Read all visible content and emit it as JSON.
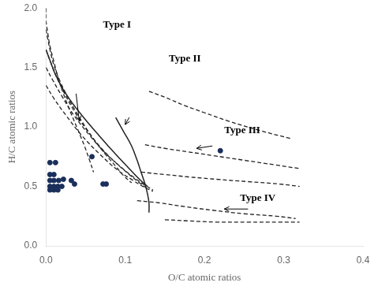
{
  "chart_data": {
    "type": "scatter",
    "xlabel": "O/C atomic ratios",
    "ylabel": "H/C atomic ratios",
    "xlim": [
      0,
      0.4
    ],
    "ylim": [
      0.0,
      2.0
    ],
    "xticks": [
      {
        "value": 0.0,
        "label": "0.0"
      },
      0.1,
      0.2,
      0.3,
      0.4
    ],
    "yticks": [
      {
        "value": 0.0,
        "label": "0.0"
      },
      0.5,
      {
        "value": 1.0,
        "label": "1.0"
      },
      1.5,
      {
        "value": 2.0,
        "label": "2.0"
      }
    ],
    "grid": false,
    "series": [
      {
        "type": "line",
        "line_style": "dashed",
        "color": "#222222",
        "x": [
          0.0,
          0.0,
          0.002,
          0.005,
          0.01,
          0.015,
          0.022,
          0.03,
          0.04,
          0.048,
          0.055,
          0.06
        ],
        "values": [
          2.0,
          1.9,
          1.8,
          1.68,
          1.55,
          1.42,
          1.28,
          1.14,
          0.98,
          0.85,
          0.72,
          0.62
        ]
      },
      {
        "type": "line",
        "line_style": "dashed",
        "color": "#222222",
        "x": [
          0.0,
          0.002,
          0.005,
          0.01,
          0.018,
          0.03,
          0.045,
          0.06,
          0.075,
          0.088,
          0.098,
          0.108
        ],
        "values": [
          1.82,
          1.75,
          1.65,
          1.52,
          1.38,
          1.22,
          1.05,
          0.9,
          0.77,
          0.67,
          0.59,
          0.53
        ]
      },
      {
        "type": "line",
        "line_style": "dashed",
        "color": "#222222",
        "x": [
          0.0,
          0.005,
          0.012,
          0.022,
          0.035,
          0.052,
          0.07,
          0.088,
          0.105,
          0.118,
          0.128
        ],
        "values": [
          1.65,
          1.56,
          1.44,
          1.3,
          1.14,
          0.97,
          0.82,
          0.7,
          0.6,
          0.53,
          0.48
        ]
      },
      {
        "type": "line",
        "line_style": "dashed",
        "color": "#222222",
        "x": [
          0.0,
          0.008,
          0.02,
          0.035,
          0.055,
          0.075,
          0.095,
          0.112,
          0.125,
          0.135
        ],
        "values": [
          1.5,
          1.4,
          1.26,
          1.1,
          0.93,
          0.78,
          0.66,
          0.57,
          0.51,
          0.47
        ]
      },
      {
        "type": "line",
        "line_style": "dashed",
        "color": "#222222",
        "x": [
          0.0,
          0.01,
          0.025,
          0.045,
          0.068,
          0.09,
          0.11,
          0.125,
          0.135
        ],
        "values": [
          1.35,
          1.24,
          1.1,
          0.93,
          0.77,
          0.64,
          0.55,
          0.49,
          0.46
        ]
      },
      {
        "type": "line",
        "line_style": "dashed",
        "color": "#222222",
        "x": [
          0.13,
          0.15,
          0.175,
          0.2,
          0.23,
          0.27,
          0.31
        ],
        "values": [
          1.3,
          1.25,
          1.18,
          1.12,
          1.05,
          0.97,
          0.9
        ]
      },
      {
        "type": "line",
        "line_style": "dashed",
        "color": "#222222",
        "x": [
          0.125,
          0.15,
          0.18,
          0.21,
          0.25,
          0.29,
          0.32
        ],
        "values": [
          0.85,
          0.82,
          0.79,
          0.76,
          0.72,
          0.68,
          0.65
        ]
      },
      {
        "type": "line",
        "line_style": "dashed",
        "color": "#222222",
        "x": [
          0.12,
          0.15,
          0.18,
          0.215,
          0.255,
          0.295,
          0.32
        ],
        "values": [
          0.62,
          0.6,
          0.58,
          0.56,
          0.54,
          0.52,
          0.5
        ]
      },
      {
        "type": "line",
        "line_style": "dashed",
        "color": "#222222",
        "x": [
          0.115,
          0.145,
          0.175,
          0.21,
          0.25,
          0.29,
          0.315
        ],
        "values": [
          0.38,
          0.36,
          0.33,
          0.3,
          0.27,
          0.25,
          0.23
        ]
      },
      {
        "type": "line",
        "line_style": "dashed",
        "color": "#222222",
        "x": [
          0.15,
          0.18,
          0.215,
          0.255,
          0.295,
          0.32
        ],
        "values": [
          0.22,
          0.21,
          0.2,
          0.2,
          0.2,
          0.2
        ]
      },
      {
        "type": "line",
        "line_style": "solid",
        "color": "#222222",
        "x": [
          0.0,
          0.005,
          0.012,
          0.025,
          0.045,
          0.068,
          0.088,
          0.105,
          0.118,
          0.128
        ],
        "values": [
          1.65,
          1.56,
          1.44,
          1.28,
          1.1,
          0.92,
          0.77,
          0.65,
          0.56,
          0.5
        ]
      },
      {
        "type": "line",
        "line_style": "solid",
        "color": "#222222",
        "x": [
          0.088,
          0.098,
          0.108,
          0.115,
          0.12,
          0.125,
          0.128,
          0.13,
          0.13
        ],
        "values": [
          1.08,
          0.96,
          0.84,
          0.72,
          0.62,
          0.52,
          0.44,
          0.36,
          0.28
        ]
      },
      {
        "type": "scatter",
        "marker": "circle",
        "color": "#1a2f5a",
        "x": [
          0.005,
          0.012,
          0.005,
          0.01,
          0.005,
          0.01,
          0.016,
          0.022,
          0.005,
          0.01,
          0.015,
          0.02,
          0.005,
          0.01,
          0.015,
          0.032,
          0.036,
          0.058,
          0.072,
          0.076,
          0.22
        ],
        "values": [
          0.7,
          0.7,
          0.6,
          0.6,
          0.55,
          0.55,
          0.55,
          0.56,
          0.5,
          0.5,
          0.5,
          0.5,
          0.47,
          0.47,
          0.47,
          0.55,
          0.52,
          0.75,
          0.52,
          0.52,
          0.8
        ]
      }
    ],
    "annotations": [
      {
        "text": "Type I",
        "x": 0.072,
        "y": 1.86
      },
      {
        "text": "Type II",
        "x": 0.155,
        "y": 1.57
      },
      {
        "text": "Type III",
        "x": 0.225,
        "y": 0.97
      },
      {
        "text": "Type IV",
        "x": 0.245,
        "y": 0.4
      }
    ],
    "arrows": [
      {
        "x": 0.038,
        "y": 1.28,
        "x_end": 0.042,
        "y_end": 1.05
      },
      {
        "x": 0.105,
        "y": 1.08,
        "x_end": 0.1,
        "y_end": 1.02
      },
      {
        "x": 0.21,
        "y": 0.84,
        "x_end": 0.19,
        "y_end": 0.82
      },
      {
        "x": 0.255,
        "y": 0.31,
        "x_end": 0.225,
        "y_end": 0.31
      }
    ]
  }
}
